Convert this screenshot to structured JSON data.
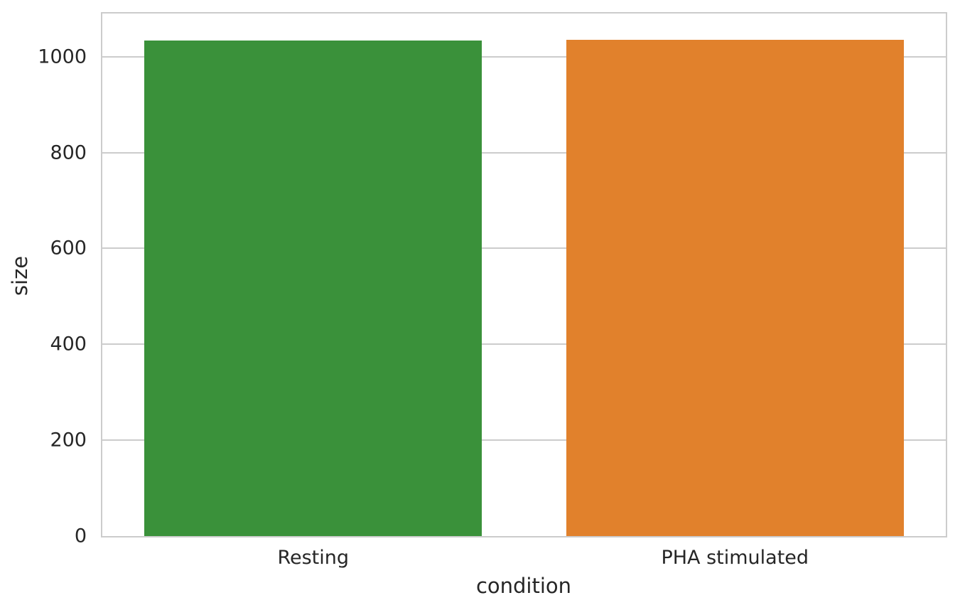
{
  "chart_data": {
    "type": "bar",
    "xlabel": "condition",
    "ylabel": "size",
    "categories": [
      "Resting",
      "PHA stimulated"
    ],
    "values": [
      1033,
      1035
    ],
    "bar_colors": [
      "#3A913A",
      "#E1812C"
    ],
    "yticks": [
      0,
      200,
      400,
      600,
      800,
      1000
    ],
    "ylim": [
      0,
      1090
    ],
    "bar_width_fraction": 0.8,
    "grid": "horizontal-only",
    "grid_color": "#CCCCCC",
    "axes_edge_color": "#CCCCCC",
    "text_color": "#262626",
    "background_color": "#FFFFFF",
    "legend": "none",
    "style": "seaborn-whitegrid"
  }
}
